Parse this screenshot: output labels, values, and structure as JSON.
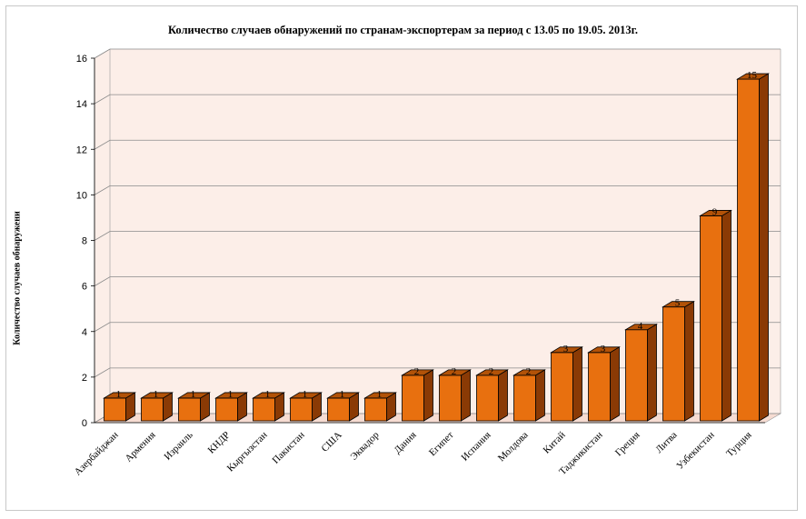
{
  "chart_data": {
    "type": "bar",
    "title": "Количество случаев обнаружений по странам-экспортерам за период с 13.05 по 19.05. 2013г.",
    "ylabel": "Количество случаев обнаружени",
    "xlabel": "",
    "ylim": [
      0,
      16
    ],
    "yticks": [
      0,
      2,
      4,
      6,
      8,
      10,
      12,
      14,
      16
    ],
    "grid": true,
    "legend": "none",
    "categories": [
      "Азербайджан",
      "Армения",
      "Израиль",
      "КНДР",
      "Кыргызстан",
      "Пакистан",
      "США",
      "Эквадор",
      "Дания",
      "Египет",
      "Испания",
      "Молдова",
      "Китай",
      "Таджикистан",
      "Греция",
      "Литва",
      "Узбекистан",
      "Турция"
    ],
    "values": [
      1,
      1,
      1,
      1,
      1,
      1,
      1,
      1,
      2,
      2,
      2,
      2,
      3,
      3,
      4,
      5,
      9,
      15
    ],
    "colors": {
      "bar_front": "#E8700F",
      "bar_side": "#8A3A05",
      "bar_top": "#B25208",
      "wall": "#FCEEE8",
      "floor": "#F6DCD2"
    }
  }
}
